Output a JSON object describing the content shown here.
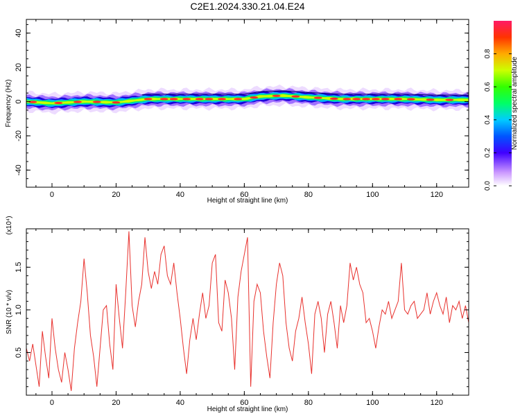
{
  "title": "C2E1.2024.330.21.04.E24",
  "chart_data": [
    {
      "type": "heatmap",
      "title": "C2E1.2024.330.21.04.E24",
      "xlabel": "Height of straight line (km)",
      "ylabel": "Frequency (Hz)",
      "xlim": [
        -8,
        130
      ],
      "ylim": [
        -50,
        48
      ],
      "xticks": [
        0,
        20,
        40,
        60,
        80,
        100,
        120
      ],
      "yticks": [
        -40,
        -20,
        0,
        20,
        40
      ],
      "band_center_hz": [
        [
          -8,
          0
        ],
        [
          0,
          -1
        ],
        [
          10,
          0
        ],
        [
          20,
          -0.5
        ],
        [
          30,
          1.5
        ],
        [
          40,
          1.5
        ],
        [
          50,
          1.5
        ],
        [
          60,
          1.5
        ],
        [
          65,
          3
        ],
        [
          72,
          3.5
        ],
        [
          80,
          2.5
        ],
        [
          90,
          1.5
        ],
        [
          100,
          1.5
        ],
        [
          110,
          1.5
        ],
        [
          120,
          1
        ],
        [
          130,
          1
        ]
      ],
      "colorbar": {
        "label": "Normalized spectral amplitude",
        "range": [
          0,
          1
        ],
        "ticks": [
          "0.0",
          "0.2",
          "0.4",
          "0.6",
          "0.8"
        ]
      }
    },
    {
      "type": "line",
      "xlabel": "Height of straight line (km)",
      "ylabel": "SNR (10 * v/v)",
      "multiplier": "(x10⁴)",
      "xlim": [
        -8,
        130
      ],
      "ylim": [
        0,
        1.95
      ],
      "xticks": [
        0,
        20,
        40,
        60,
        80,
        100,
        120
      ],
      "yticks": [
        0.5,
        1.0,
        1.5
      ],
      "ytick_labels": [
        "0.5",
        "1.0",
        "1.5"
      ],
      "color": "#e8302c",
      "series": [
        {
          "x": [
            -8,
            -7,
            -6,
            -5,
            -4,
            -3,
            -2,
            -1,
            0,
            1,
            2,
            3,
            4,
            5,
            6,
            7,
            8,
            9,
            10,
            11,
            12,
            13,
            14,
            15,
            16,
            17,
            18,
            19,
            20,
            21,
            22,
            23,
            24,
            25,
            26,
            27,
            28,
            29,
            30,
            31,
            32,
            33,
            34,
            35,
            36,
            37,
            38,
            39,
            40,
            41,
            42,
            43,
            44,
            45,
            46,
            47,
            48,
            49,
            50,
            51,
            52,
            53,
            54,
            55,
            56,
            57,
            58,
            59,
            60,
            61,
            62,
            63,
            64,
            65,
            66,
            67,
            68,
            69,
            70,
            71,
            72,
            73,
            74,
            75,
            76,
            77,
            78,
            79,
            80,
            81,
            82,
            83,
            84,
            85,
            86,
            87,
            88,
            89,
            90,
            91,
            92,
            93,
            94,
            95,
            96,
            97,
            98,
            99,
            100,
            101,
            102,
            103,
            104,
            105,
            106,
            107,
            108,
            109,
            110,
            111,
            112,
            113,
            114,
            115,
            116,
            117,
            118,
            119,
            120,
            121,
            122,
            123,
            124,
            125,
            126,
            127,
            128,
            129,
            130
          ],
          "values": [
            0.55,
            0.4,
            0.6,
            0.35,
            0.1,
            0.75,
            0.45,
            0.2,
            0.9,
            0.55,
            0.3,
            0.15,
            0.5,
            0.3,
            0.05,
            0.55,
            0.85,
            1.1,
            1.6,
            1.2,
            0.7,
            0.45,
            0.1,
            0.55,
            1.0,
            1.05,
            0.6,
            0.3,
            1.3,
            0.9,
            0.55,
            1.2,
            1.92,
            1.05,
            0.8,
            1.1,
            1.3,
            1.85,
            1.45,
            1.25,
            1.45,
            1.3,
            1.65,
            1.75,
            1.4,
            1.3,
            1.55,
            1.2,
            0.9,
            0.55,
            0.25,
            0.65,
            0.9,
            0.65,
            0.95,
            1.2,
            0.9,
            1.05,
            1.55,
            1.65,
            0.85,
            0.75,
            1.35,
            1.2,
            0.9,
            0.3,
            1.15,
            1.45,
            1.65,
            1.85,
            0.1,
            1.1,
            1.3,
            1.2,
            0.75,
            0.45,
            0.2,
            0.85,
            1.3,
            1.55,
            1.4,
            0.85,
            0.55,
            0.4,
            0.75,
            0.9,
            1.15,
            0.85,
            0.6,
            0.25,
            0.95,
            1.1,
            0.9,
            0.5,
            0.95,
            1.1,
            0.85,
            0.55,
            1.05,
            0.85,
            1.05,
            1.55,
            1.35,
            1.5,
            1.3,
            1.2,
            0.85,
            0.9,
            0.75,
            0.55,
            0.8,
            1.0,
            0.95,
            1.1,
            0.9,
            1.0,
            1.1,
            1.55,
            1.0,
            0.95,
            1.05,
            1.1,
            0.9,
            0.95,
            1.0,
            1.2,
            0.95,
            1.1,
            1.2,
            1.05,
            0.95,
            1.15,
            0.85,
            1.05,
            1.0,
            1.1,
            0.9,
            1.05,
            0.85
          ]
        }
      ]
    }
  ]
}
